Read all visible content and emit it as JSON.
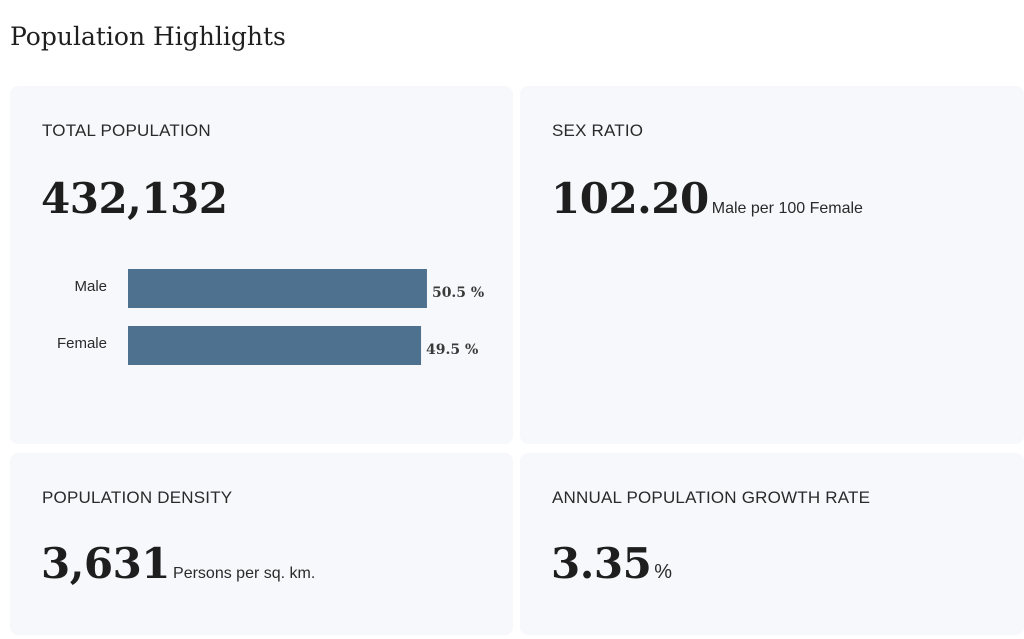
{
  "page": {
    "title": "Population Highlights"
  },
  "cards": {
    "total_population": {
      "label": "TOTAL POPULATION",
      "value": "432,132"
    },
    "sex_ratio": {
      "label": "SEX RATIO",
      "value": "102.20",
      "unit": "Male per 100 Female"
    },
    "population_density": {
      "label": "POPULATION DENSITY",
      "value": "3,631",
      "unit": "Persons per sq. km."
    },
    "growth_rate": {
      "label": "ANNUAL POPULATION GROWTH RATE",
      "value": "3.35",
      "unit": "%"
    }
  },
  "colors": {
    "bar": "#4f7190",
    "card_bg": "#f7f8fc"
  },
  "chart_data": {
    "type": "bar",
    "orientation": "horizontal",
    "categories": [
      "Male",
      "Female"
    ],
    "values": [
      50.5,
      49.5
    ],
    "value_labels": [
      "50.5 %",
      "49.5 %"
    ],
    "title": "",
    "xlabel": "",
    "ylabel": "",
    "xlim": [
      0,
      100
    ],
    "grid": false
  }
}
